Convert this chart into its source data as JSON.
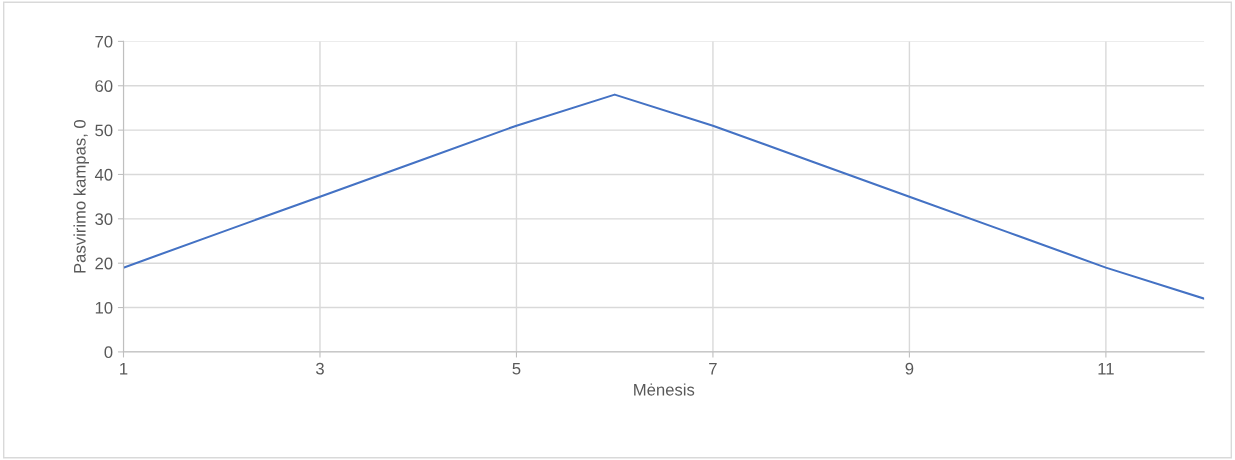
{
  "chart_data": {
    "type": "line",
    "xlabel": "Mėnesis",
    "ylabel": "Pasvirimo kampas, 0",
    "x": [
      1,
      2,
      3,
      4,
      5,
      6,
      7,
      8,
      9,
      10,
      11,
      12
    ],
    "series": [
      {
        "color": "#4472c4",
        "values": [
          19,
          27,
          35,
          43,
          51,
          58,
          51,
          43,
          35,
          27,
          19,
          12
        ]
      }
    ],
    "xlim": [
      1,
      12
    ],
    "xticks": [
      1,
      3,
      5,
      7,
      9,
      11
    ],
    "ylim": [
      0,
      70
    ],
    "yticks": [
      0,
      10,
      20,
      30,
      40,
      50,
      60,
      70
    ],
    "grid": true,
    "legend": false,
    "marker": "none",
    "line_style": "solid"
  }
}
